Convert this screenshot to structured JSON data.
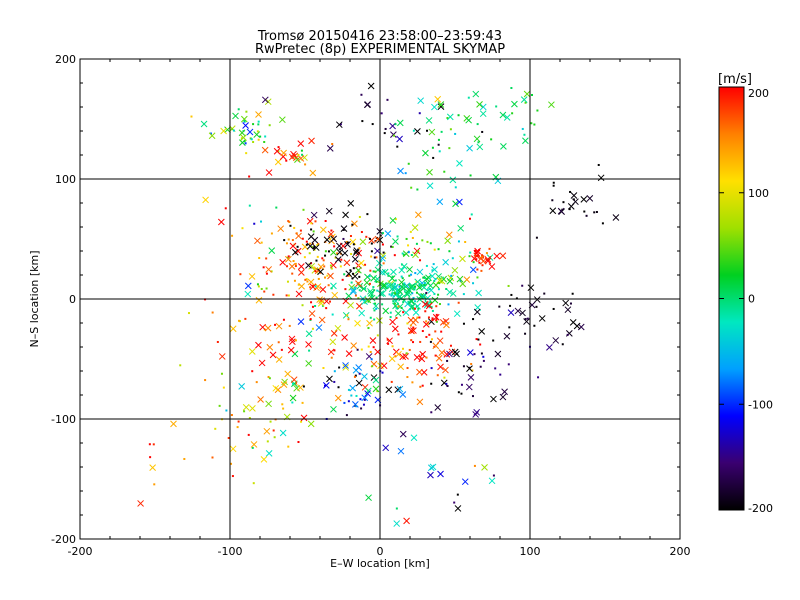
{
  "chart_data": {
    "type": "scatter",
    "title": "Tromsø 20150416 23:58:00–23:59:43",
    "subtitle": "RwPretec (8p) EXPERIMENTAL SKYMAP",
    "xlabel": "E–W location [km]",
    "ylabel": "N–S location [km]",
    "xlim": [
      -200,
      200
    ],
    "ylim": [
      -200,
      200
    ],
    "x_ticks": [
      -200,
      -100,
      0,
      100,
      200
    ],
    "y_ticks": [
      -200,
      -100,
      0,
      100,
      200
    ],
    "grid": true,
    "colorbar": {
      "label": "[m/s]",
      "range": [
        -200,
        200
      ],
      "ticks": [
        -200,
        -100,
        0,
        100,
        200
      ],
      "colormap": "rainbow-black",
      "colors": [
        "#000000",
        "#3a0070",
        "#0000ff",
        "#00a0ff",
        "#00e8c0",
        "#00d020",
        "#a0e000",
        "#ffe000",
        "#ff8000",
        "#ff0000"
      ]
    },
    "marker_legend": {
      "cross": "large symbol",
      "dot": "small symbol"
    },
    "clusters": [
      {
        "cx": -90,
        "cy": 140,
        "sx": 12,
        "sy": 10,
        "n": 40,
        "v": 10,
        "vs": 60
      },
      {
        "cx": -55,
        "cy": 120,
        "sx": 12,
        "sy": 8,
        "n": 25,
        "v": 130,
        "vs": 50
      },
      {
        "cx": 0,
        "cy": 150,
        "sx": 25,
        "sy": 15,
        "n": 25,
        "v": -190,
        "vs": 30
      },
      {
        "cx": 60,
        "cy": 140,
        "sx": 25,
        "sy": 15,
        "n": 45,
        "v": 15,
        "vs": 40
      },
      {
        "cx": 95,
        "cy": 160,
        "sx": 10,
        "sy": 10,
        "n": 10,
        "v": 20,
        "vs": 20
      },
      {
        "cx": 130,
        "cy": 80,
        "sx": 15,
        "sy": 10,
        "n": 25,
        "v": -200,
        "vs": 10
      },
      {
        "cx": 40,
        "cy": 100,
        "sx": 20,
        "sy": 10,
        "n": 15,
        "v": 0,
        "vs": 50
      },
      {
        "cx": -75,
        "cy": 60,
        "sx": 15,
        "sy": 20,
        "n": 25,
        "v": 100,
        "vs": 90
      },
      {
        "cx": -40,
        "cy": 30,
        "sx": 20,
        "sy": 20,
        "n": 120,
        "v": 160,
        "vs": 60
      },
      {
        "cx": -25,
        "cy": 45,
        "sx": 15,
        "sy": 15,
        "n": 60,
        "v": -200,
        "vs": 10
      },
      {
        "cx": 20,
        "cy": 40,
        "sx": 25,
        "sy": 15,
        "n": 50,
        "v": 60,
        "vs": 80
      },
      {
        "cx": 10,
        "cy": 5,
        "sx": 18,
        "sy": 10,
        "n": 180,
        "v": -5,
        "vs": 20
      },
      {
        "cx": 45,
        "cy": 20,
        "sx": 20,
        "sy": 15,
        "n": 50,
        "v": 0,
        "vs": 40
      },
      {
        "cx": 68,
        "cy": 35,
        "sx": 5,
        "sy": 5,
        "n": 25,
        "v": 190,
        "vs": 20
      },
      {
        "cx": 100,
        "cy": -15,
        "sx": 25,
        "sy": 15,
        "n": 40,
        "v": -200,
        "vs": 20
      },
      {
        "cx": 30,
        "cy": -20,
        "sx": 15,
        "sy": 10,
        "n": 40,
        "v": 190,
        "vs": 30
      },
      {
        "cx": 20,
        "cy": -50,
        "sx": 20,
        "sy": 15,
        "n": 60,
        "v": 180,
        "vs": 50
      },
      {
        "cx": 60,
        "cy": -60,
        "sx": 20,
        "sy": 20,
        "n": 40,
        "v": -180,
        "vs": 30
      },
      {
        "cx": -55,
        "cy": -30,
        "sx": 30,
        "sy": 25,
        "n": 90,
        "v": 150,
        "vs": 90
      },
      {
        "cx": -15,
        "cy": -70,
        "sx": 15,
        "sy": 15,
        "n": 50,
        "v": -120,
        "vs": 80
      },
      {
        "cx": -80,
        "cy": -100,
        "sx": 30,
        "sy": 20,
        "n": 50,
        "v": 120,
        "vs": 90
      },
      {
        "cx": 50,
        "cy": -150,
        "sx": 40,
        "sy": 25,
        "n": 20,
        "v": -70,
        "vs": 90
      },
      {
        "cx": -140,
        "cy": -130,
        "sx": 15,
        "sy": 15,
        "n": 10,
        "v": 160,
        "vs": 40
      }
    ]
  }
}
